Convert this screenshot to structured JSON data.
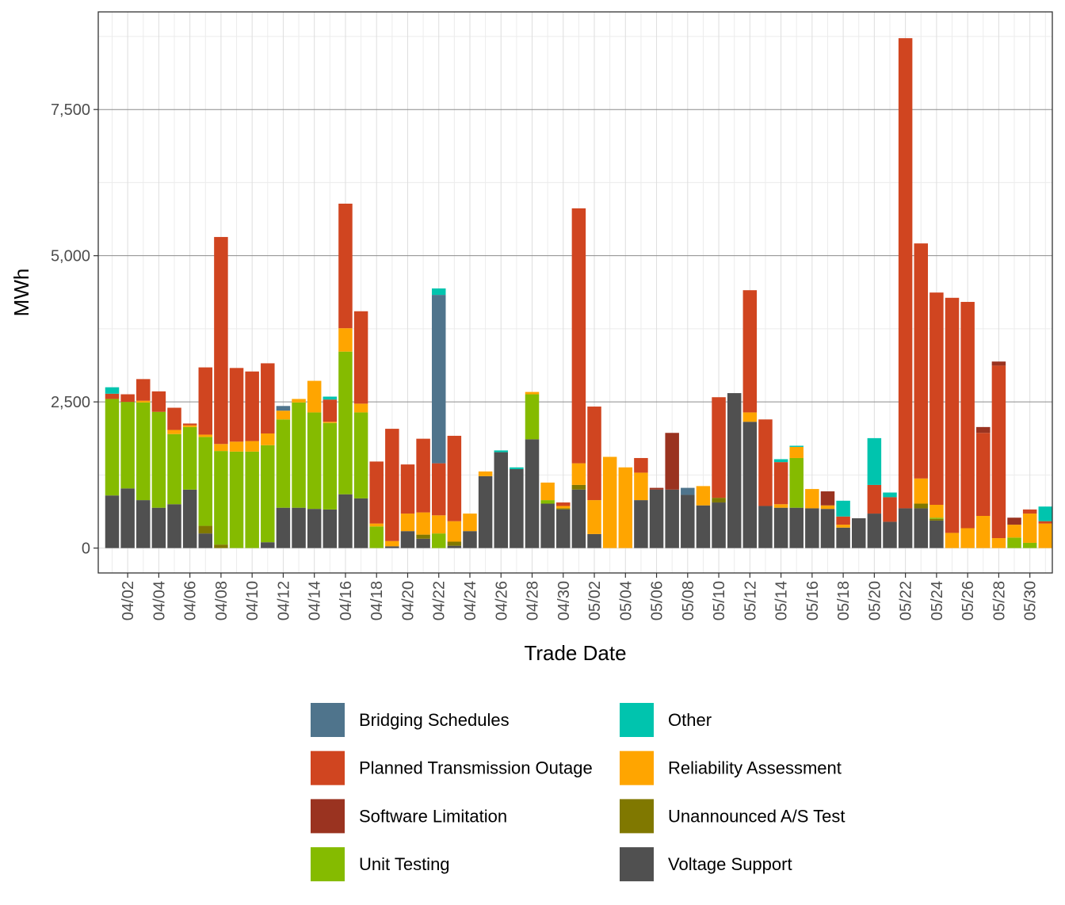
{
  "chart_data": {
    "type": "bar",
    "stacked": true,
    "xlabel": "Trade Date",
    "ylabel": "MWh",
    "ylim": [
      -430,
      9200
    ],
    "yticks": [
      0,
      2500,
      5000,
      7500
    ],
    "ytick_labels": [
      "0",
      "2,500",
      "5,000",
      "7,500"
    ],
    "ygrid_minor": [
      1250,
      3750,
      6250,
      8750
    ],
    "categories": [
      "04/01",
      "04/02",
      "04/03",
      "04/04",
      "04/05",
      "04/06",
      "04/07",
      "04/08",
      "04/09",
      "04/10",
      "04/11",
      "04/12",
      "04/13",
      "04/14",
      "04/15",
      "04/16",
      "04/17",
      "04/18",
      "04/19",
      "04/20",
      "04/21",
      "04/22",
      "04/23",
      "04/24",
      "04/25",
      "04/26",
      "04/27",
      "04/28",
      "04/29",
      "04/30",
      "05/01",
      "05/02",
      "05/03",
      "05/04",
      "05/05",
      "05/06",
      "05/07",
      "05/08",
      "05/09",
      "05/10",
      "05/11",
      "05/12",
      "05/13",
      "05/14",
      "05/15",
      "05/16",
      "05/17",
      "05/18",
      "05/19",
      "05/20",
      "05/21",
      "05/22",
      "05/23",
      "05/24",
      "05/25",
      "05/26",
      "05/27",
      "05/28",
      "05/29",
      "05/30",
      "05/31"
    ],
    "tick_labels": [
      "04/02",
      "04/04",
      "04/06",
      "04/08",
      "04/10",
      "04/12",
      "04/14",
      "04/16",
      "04/18",
      "04/20",
      "04/22",
      "04/24",
      "04/26",
      "04/28",
      "04/30",
      "05/02",
      "05/04",
      "05/06",
      "05/08",
      "05/10",
      "05/12",
      "05/14",
      "05/16",
      "05/18",
      "05/20",
      "05/22",
      "05/24",
      "05/26",
      "05/28",
      "05/30"
    ],
    "legend_position": "bottom",
    "series": [
      {
        "name": "Voltage Support",
        "color": "#505050",
        "values": [
          900,
          1020,
          820,
          690,
          750,
          1000,
          250,
          0,
          0,
          0,
          100,
          690,
          690,
          670,
          660,
          920,
          850,
          0,
          30,
          290,
          160,
          0,
          40,
          290,
          1230,
          1640,
          1350,
          1860,
          760,
          660,
          1000,
          240,
          0,
          0,
          820,
          1000,
          1000,
          910,
          730,
          780,
          2650,
          2160,
          720,
          690,
          690,
          680,
          670,
          350,
          510,
          590,
          450,
          680,
          680,
          470,
          0,
          0,
          0,
          0,
          0,
          0,
          0
        ]
      },
      {
        "name": "Unannounced A/S Test",
        "color": "#807800",
        "values": [
          0,
          0,
          0,
          0,
          0,
          0,
          130,
          60,
          0,
          0,
          0,
          0,
          0,
          0,
          0,
          0,
          0,
          0,
          0,
          0,
          70,
          0,
          70,
          0,
          0,
          0,
          0,
          0,
          0,
          20,
          80,
          0,
          0,
          0,
          0,
          0,
          0,
          0,
          0,
          80,
          0,
          0,
          0,
          0,
          0,
          0,
          0,
          0,
          0,
          0,
          0,
          0,
          80,
          30,
          0,
          0,
          0,
          0,
          0,
          0,
          0
        ]
      },
      {
        "name": "Unit Testing",
        "color": "#85BB00",
        "values": [
          1650,
          1480,
          1670,
          1640,
          1200,
          1070,
          1520,
          1600,
          1650,
          1650,
          1660,
          1510,
          1800,
          1650,
          1480,
          2440,
          1470,
          370,
          0,
          0,
          0,
          250,
          0,
          0,
          0,
          0,
          0,
          770,
          60,
          0,
          0,
          0,
          0,
          0,
          0,
          0,
          0,
          0,
          0,
          0,
          0,
          0,
          0,
          0,
          850,
          0,
          0,
          0,
          0,
          0,
          0,
          0,
          0,
          20,
          0,
          0,
          0,
          0,
          180,
          90,
          0
        ]
      },
      {
        "name": "Reliability Assessment",
        "color": "#FFA500",
        "values": [
          0,
          0,
          30,
          0,
          70,
          30,
          40,
          120,
          170,
          180,
          200,
          150,
          60,
          540,
          20,
          400,
          150,
          50,
          90,
          300,
          380,
          310,
          350,
          300,
          80,
          0,
          0,
          40,
          300,
          40,
          370,
          580,
          1560,
          1380,
          470,
          0,
          0,
          0,
          330,
          0,
          0,
          160,
          0,
          60,
          190,
          330,
          60,
          50,
          0,
          0,
          0,
          0,
          430,
          220,
          260,
          340,
          550,
          170,
          220,
          500,
          420
        ]
      },
      {
        "name": "Planned Transmission Outage",
        "color": "#D04520",
        "values": [
          90,
          130,
          370,
          350,
          380,
          30,
          1150,
          3540,
          1260,
          1190,
          1200,
          0,
          0,
          0,
          380,
          2130,
          1580,
          1060,
          1920,
          840,
          1260,
          890,
          1460,
          0,
          0,
          0,
          0,
          0,
          0,
          60,
          4360,
          1600,
          0,
          0,
          250,
          0,
          0,
          0,
          0,
          1720,
          0,
          2090,
          1480,
          720,
          0,
          0,
          0,
          140,
          0,
          490,
          420,
          8040,
          4020,
          3630,
          4020,
          3870,
          1420,
          2950,
          0,
          70,
          40
        ]
      },
      {
        "name": "Software Limitation",
        "color": "#9A3320",
        "values": [
          0,
          0,
          0,
          0,
          0,
          0,
          0,
          0,
          0,
          0,
          0,
          0,
          0,
          0,
          0,
          0,
          0,
          0,
          0,
          0,
          0,
          0,
          0,
          0,
          0,
          0,
          0,
          0,
          0,
          0,
          0,
          0,
          0,
          0,
          0,
          30,
          970,
          0,
          0,
          0,
          0,
          0,
          0,
          0,
          0,
          0,
          240,
          0,
          0,
          0,
          0,
          0,
          0,
          0,
          0,
          0,
          100,
          70,
          120,
          0,
          0
        ]
      },
      {
        "name": "Bridging Schedules",
        "color": "#4F748C",
        "values": [
          0,
          0,
          0,
          0,
          0,
          0,
          0,
          0,
          0,
          0,
          0,
          80,
          0,
          0,
          0,
          0,
          0,
          0,
          0,
          0,
          0,
          2880,
          0,
          0,
          0,
          0,
          0,
          0,
          0,
          0,
          0,
          0,
          0,
          0,
          0,
          0,
          0,
          120,
          0,
          0,
          0,
          0,
          0,
          0,
          0,
          0,
          0,
          0,
          0,
          0,
          0,
          0,
          0,
          0,
          0,
          0,
          0,
          0,
          0,
          0,
          0
        ]
      },
      {
        "name": "Other",
        "color": "#00C4AE",
        "values": [
          110,
          0,
          0,
          0,
          0,
          0,
          0,
          0,
          0,
          0,
          0,
          0,
          0,
          0,
          50,
          0,
          0,
          0,
          0,
          0,
          0,
          110,
          0,
          0,
          0,
          30,
          30,
          0,
          0,
          0,
          0,
          0,
          0,
          0,
          0,
          0,
          0,
          0,
          0,
          0,
          0,
          0,
          0,
          50,
          20,
          0,
          0,
          270,
          0,
          800,
          80,
          0,
          0,
          0,
          0,
          0,
          0,
          0,
          0,
          0,
          250
        ]
      }
    ],
    "legend_order": [
      "Bridging Schedules",
      "Other",
      "Planned Transmission Outage",
      "Reliability Assessment",
      "Software Limitation",
      "Unannounced A/S Test",
      "Unit Testing",
      "Voltage Support"
    ]
  }
}
